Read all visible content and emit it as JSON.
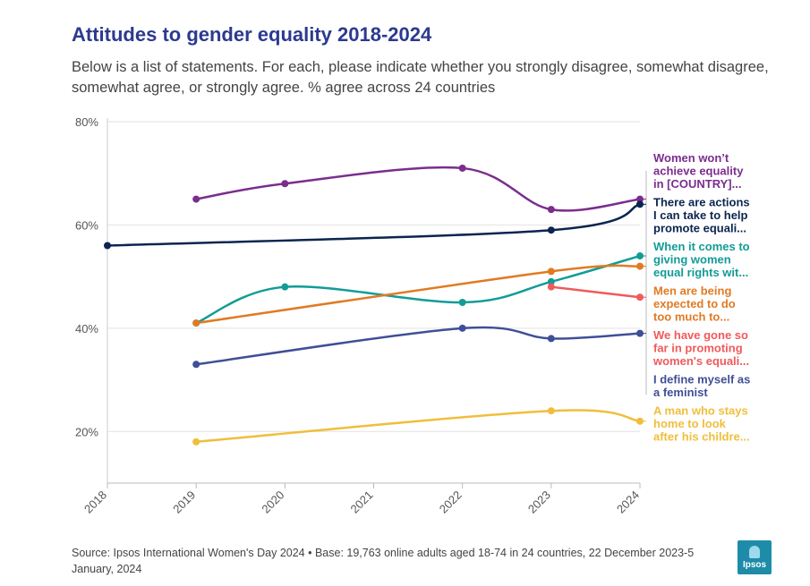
{
  "header": {
    "title": "Attitudes to gender equality 2018-2024",
    "subtitle": "Below is a list of statements. For each, please indicate whether you strongly disagree, somewhat disagree, somewhat agree, or strongly agree. % agree across 24 countries"
  },
  "footer": {
    "source": "Source: Ipsos International Women's Day 2024 • Base: 19,763 online adults aged 18-74 in 24 countries, 22 December 2023-5 January, 2024"
  },
  "logo": {
    "text": "Ipsos",
    "color": "#1e8ca8"
  },
  "chart_data": {
    "type": "line",
    "x": [
      2018,
      2019,
      2020,
      2021,
      2022,
      2023,
      2024
    ],
    "ylim": [
      10,
      80
    ],
    "yticks": [
      20,
      40,
      60,
      80
    ],
    "ytick_labels": [
      "20%",
      "40%",
      "60%",
      "80%"
    ],
    "grid": true,
    "legend": "right end labels",
    "series": [
      {
        "name": "Women won't achieve equality in [COUNTRY]...",
        "color": "#7b2d8e",
        "label_lines": [
          "Women won’t",
          "achieve equality",
          "in [COUNTRY]..."
        ],
        "points": [
          [
            2019,
            65
          ],
          [
            2020,
            68
          ],
          [
            2022,
            71
          ],
          [
            2023,
            63
          ],
          [
            2024,
            65
          ]
        ]
      },
      {
        "name": "There are actions I can take to help promote equali...",
        "color": "#0b2550",
        "label_lines": [
          "There are actions",
          "I can take to help",
          "promote equali..."
        ],
        "points": [
          [
            2018,
            56
          ],
          [
            2023,
            59
          ],
          [
            2024,
            64
          ]
        ]
      },
      {
        "name": "When it comes to giving women equal rights wit...",
        "color": "#129c96",
        "label_lines": [
          "When it comes to",
          "giving women",
          "equal rights wit..."
        ],
        "points": [
          [
            2019,
            41
          ],
          [
            2020,
            48
          ],
          [
            2022,
            45
          ],
          [
            2023,
            49
          ],
          [
            2024,
            54
          ]
        ]
      },
      {
        "name": "Men are being expected to do too much to...",
        "color": "#e07b24",
        "label_lines": [
          "Men are being",
          "expected to do",
          "too much to..."
        ],
        "points": [
          [
            2019,
            41
          ],
          [
            2023,
            51
          ],
          [
            2024,
            52
          ]
        ]
      },
      {
        "name": "We have gone so far in promoting women's equali...",
        "color": "#f05a5b",
        "label_lines": [
          "We have gone so",
          "far in promoting",
          "women's equali..."
        ],
        "points": [
          [
            2023,
            48
          ],
          [
            2024,
            46
          ]
        ]
      },
      {
        "name": "I define myself as a feminist",
        "color": "#3f4f97",
        "label_lines": [
          "I define myself as",
          "a feminist"
        ],
        "points": [
          [
            2019,
            33
          ],
          [
            2022,
            40
          ],
          [
            2023,
            38
          ],
          [
            2024,
            39
          ]
        ]
      },
      {
        "name": "A man who stays home to look after his childre...",
        "color": "#f0be3c",
        "label_lines": [
          "A man who stays",
          "home to look",
          "after his childre..."
        ],
        "points": [
          [
            2019,
            18
          ],
          [
            2023,
            24
          ],
          [
            2024,
            22
          ]
        ]
      }
    ]
  }
}
